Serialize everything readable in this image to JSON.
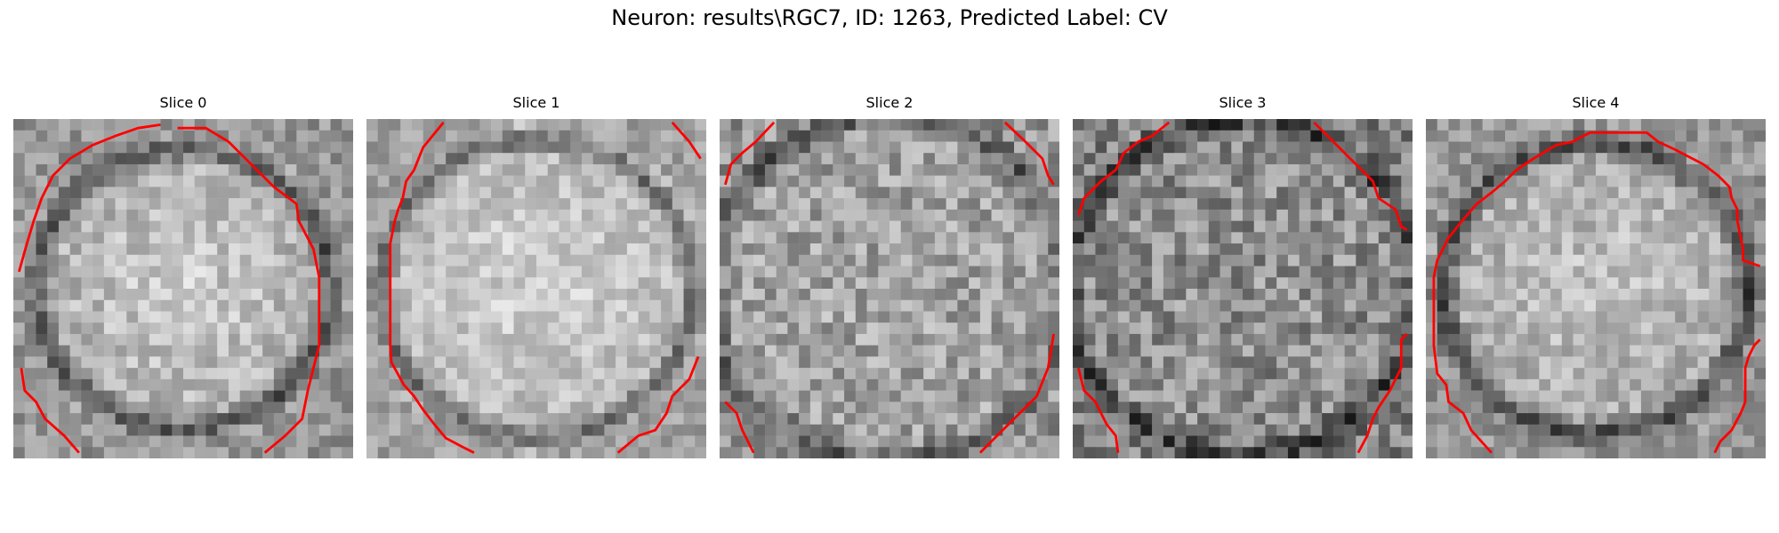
{
  "figure": {
    "title": "Neuron: results\\RGC7, ID: 1263, Predicted Label: CV",
    "contour_color": "#ff0000",
    "colormap": "grayscale"
  },
  "panels": [
    {
      "title": "Slice 0",
      "contour": "membrane outline on left, upper arc and right side"
    },
    {
      "title": "Slice 1",
      "contour": "left edge, top-right corner and bottom-right"
    },
    {
      "title": "Slice 2",
      "contour": "top corners and bottom corners"
    },
    {
      "title": "Slice 3",
      "contour": "top corners, right side and bottom corners"
    },
    {
      "title": "Slice 4",
      "contour": "near-complete circular outline"
    }
  ]
}
